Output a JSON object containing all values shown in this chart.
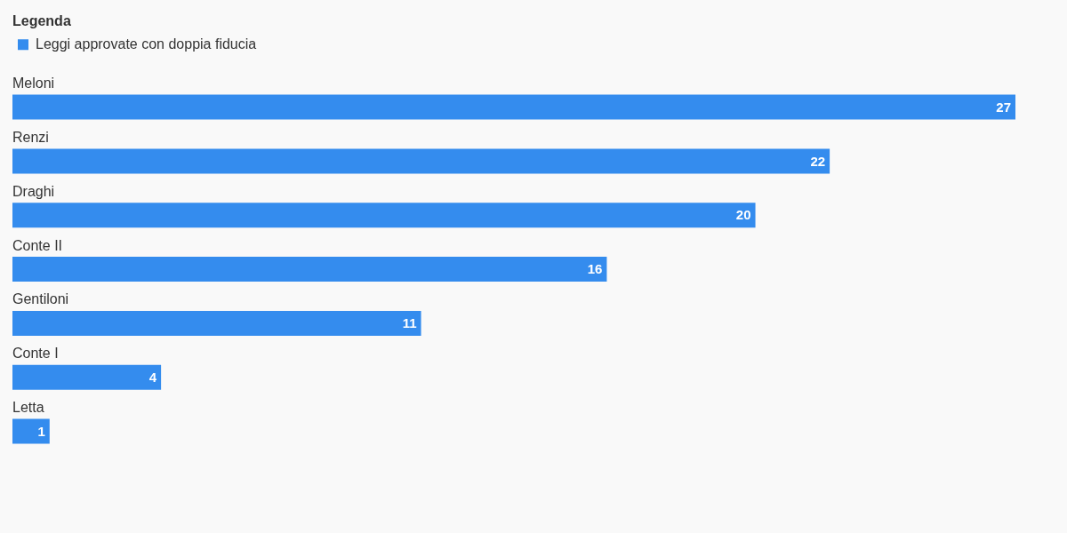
{
  "chart_data": {
    "type": "bar",
    "orientation": "horizontal",
    "categories": [
      "Meloni",
      "Renzi",
      "Draghi",
      "Conte II",
      "Gentiloni",
      "Conte I",
      "Letta"
    ],
    "series": [
      {
        "name": "Leggi approvate con doppia fiducia",
        "color": "#348cee",
        "values": [
          27,
          22,
          20,
          16,
          11,
          4,
          1
        ]
      }
    ],
    "xlim": [
      0,
      27
    ],
    "legend_title": "Legenda",
    "legend": "top left",
    "data_labels": true,
    "tick_labels": "y",
    "grid": false
  }
}
